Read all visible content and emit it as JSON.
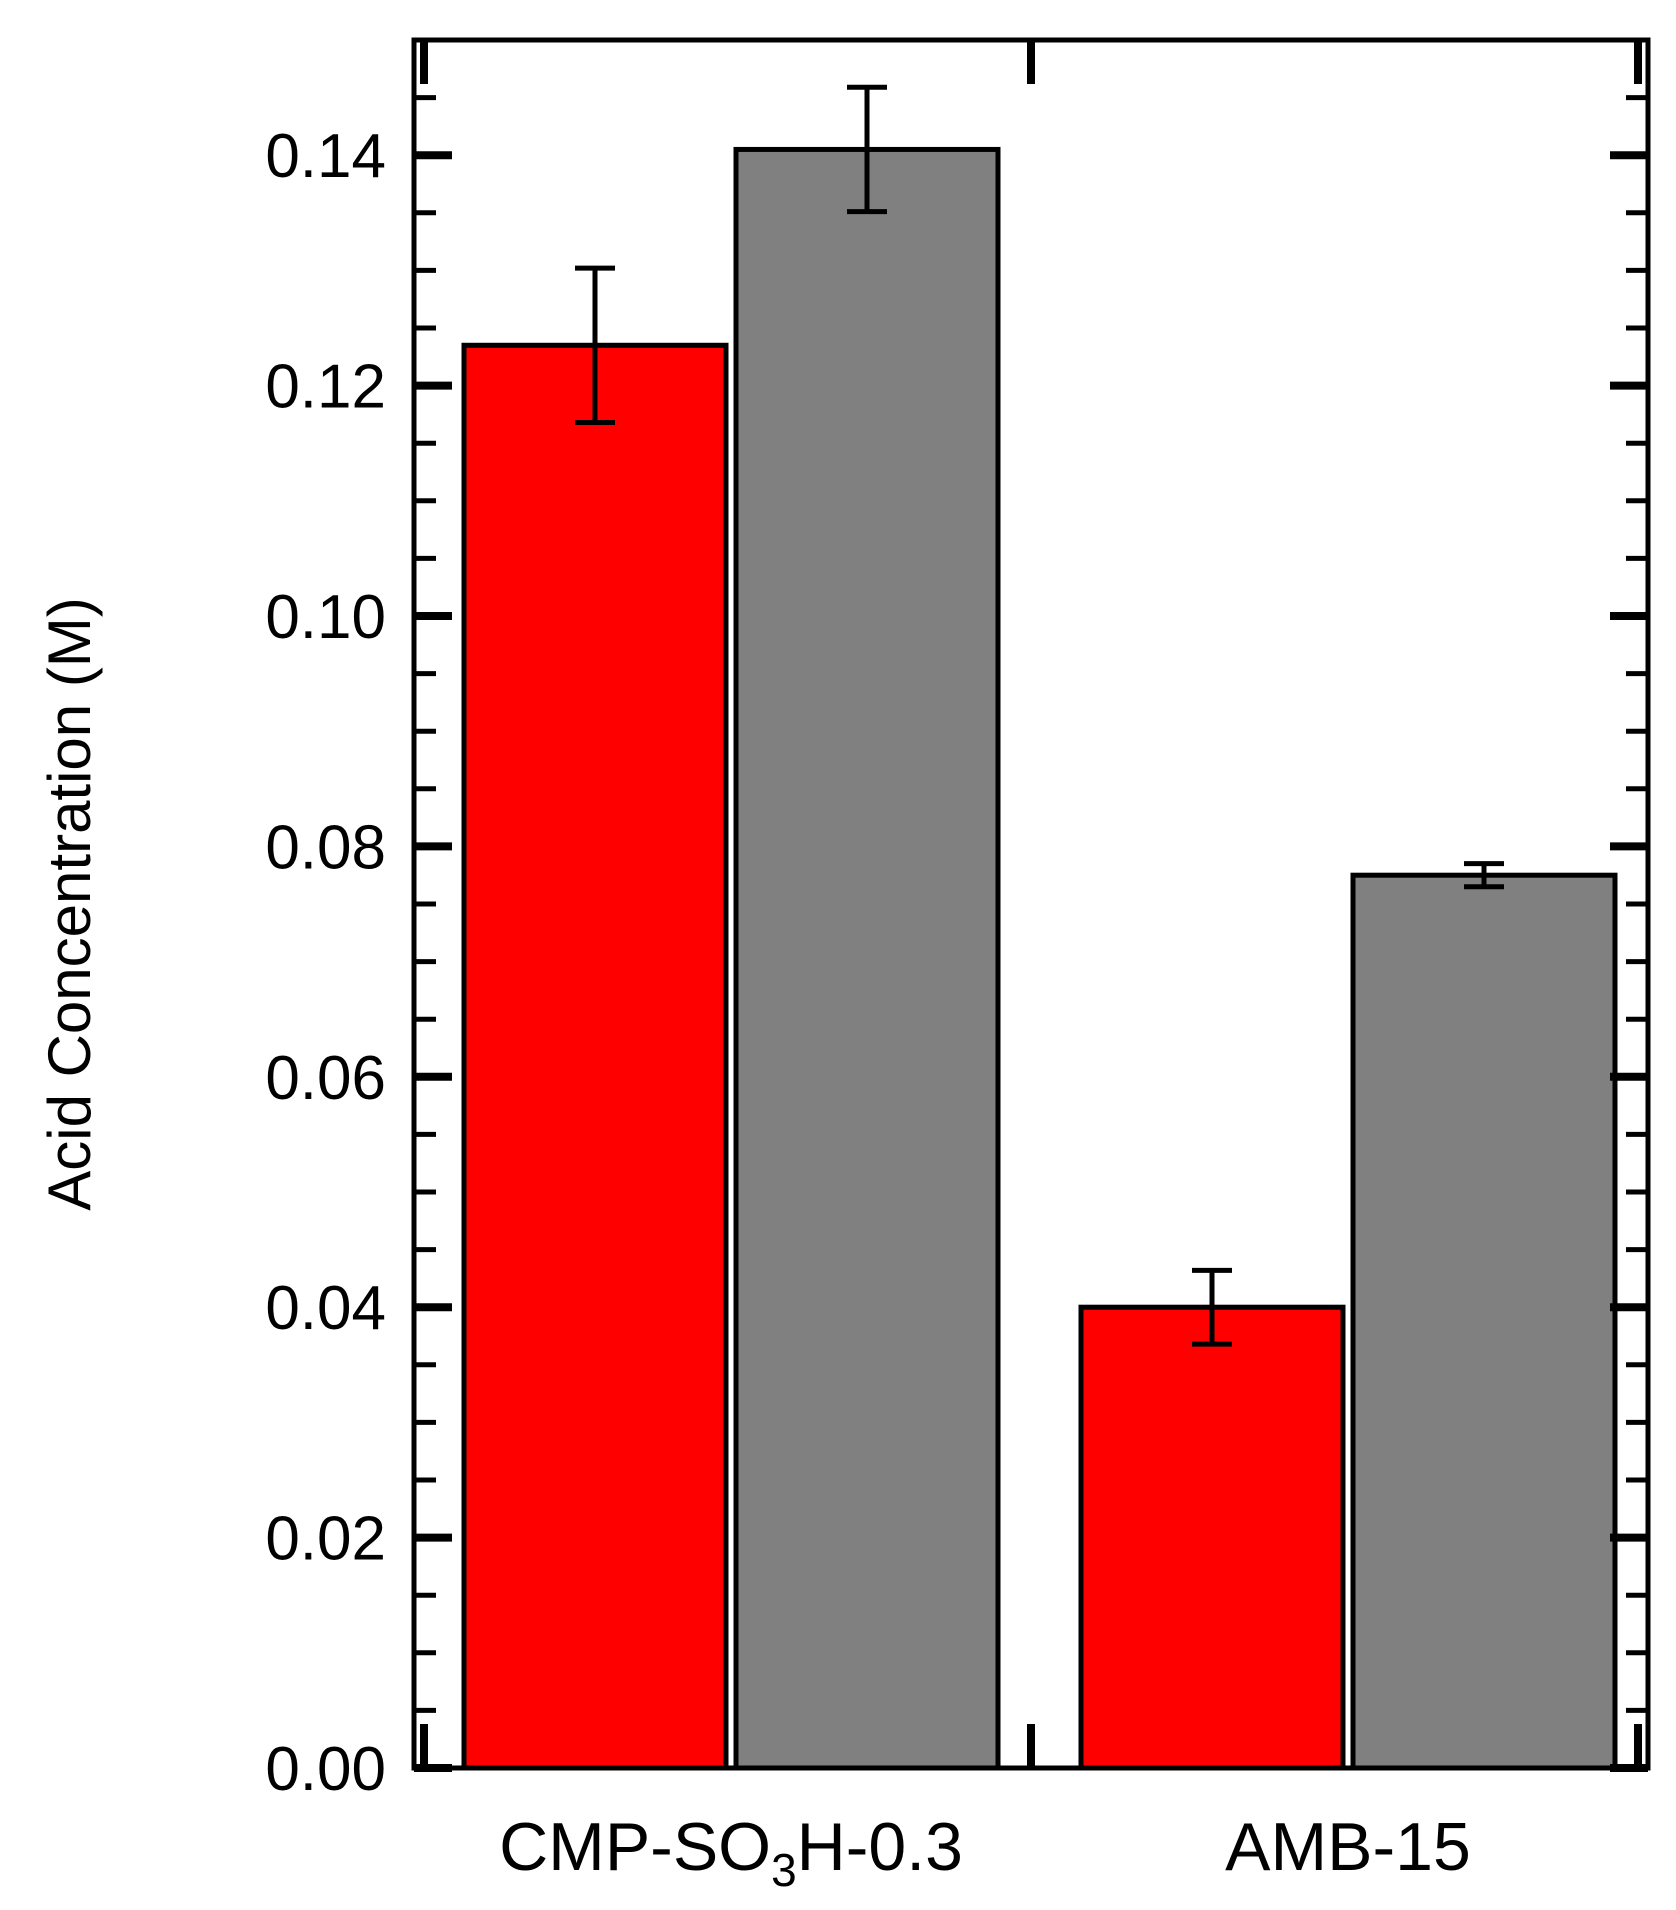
{
  "chart_data": {
    "type": "bar",
    "title": "",
    "xlabel": "",
    "ylabel": "Acid Concentration (M)",
    "ylim": [
      0,
      0.15
    ],
    "y_major_ticks": [
      0.0,
      0.02,
      0.04,
      0.06,
      0.08,
      0.1,
      0.12,
      0.14
    ],
    "y_tick_labels": [
      "0.00",
      "0.02",
      "0.04",
      "0.06",
      "0.08",
      "0.10",
      "0.12",
      "0.14"
    ],
    "categories": [
      {
        "main": "CMP-SO",
        "sub": "3",
        "rest": "H-0.3"
      },
      {
        "main": "AMB-15",
        "sub": "",
        "rest": ""
      }
    ],
    "series": [
      {
        "color": "#ff0000",
        "values": [
          0.1235,
          0.04
        ],
        "errors": [
          0.0067,
          0.0032
        ]
      },
      {
        "color": "#808080",
        "values": [
          0.1405,
          0.0775
        ],
        "errors": [
          0.0054,
          0.001
        ]
      }
    ],
    "grid": false,
    "legend": "none"
  }
}
